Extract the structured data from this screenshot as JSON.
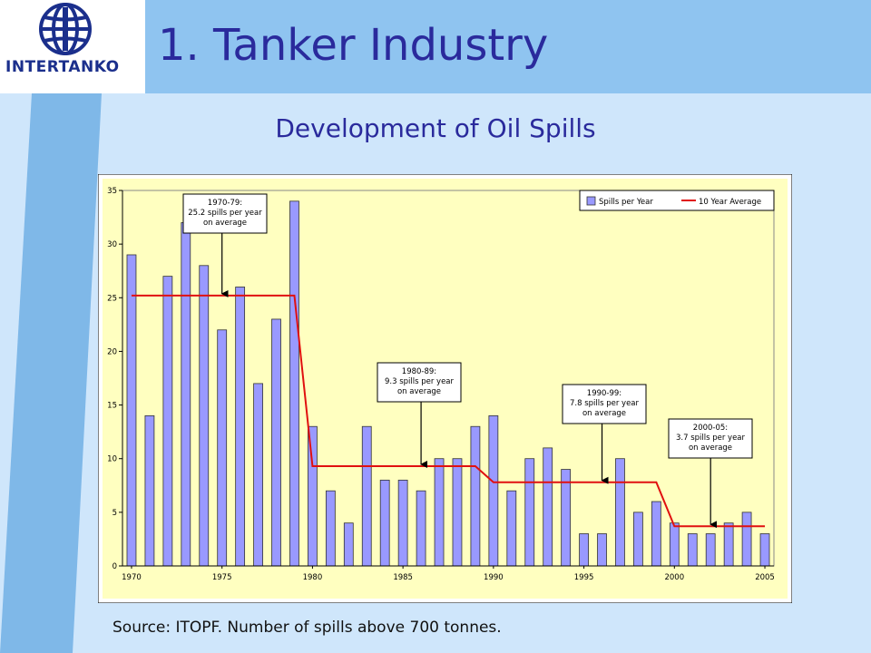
{
  "slide": {
    "title": "1. Tanker Industry",
    "subtitle": "Development of Oil Spills",
    "source": "Source: ITOPF. Number of spills above 700 tonnes.",
    "logo_text": "INTERTANKO"
  },
  "colors": {
    "title": "#2a2a9c",
    "plot_bg": "#ffffc0",
    "bar_fill": "#9999ff",
    "avg_line": "#e01010"
  },
  "chart_data": {
    "type": "bar",
    "title": "",
    "xlabel": "",
    "ylabel": "",
    "ylim": [
      0,
      35
    ],
    "yticks": [
      0,
      5,
      10,
      15,
      20,
      25,
      30,
      35
    ],
    "xtick_labels": [
      "1970",
      "1975",
      "1980",
      "1985",
      "1990",
      "1995",
      "2000",
      "2005"
    ],
    "categories": [
      "1970",
      "1971",
      "1972",
      "1973",
      "1974",
      "1975",
      "1976",
      "1977",
      "1978",
      "1979",
      "1980",
      "1981",
      "1982",
      "1983",
      "1984",
      "1985",
      "1986",
      "1987",
      "1988",
      "1989",
      "1990",
      "1991",
      "1992",
      "1993",
      "1994",
      "1995",
      "1996",
      "1997",
      "1998",
      "1999",
      "2000",
      "2001",
      "2002",
      "2003",
      "2004",
      "2005"
    ],
    "legend": {
      "position": "top-right"
    },
    "series": [
      {
        "name": "Spills per Year",
        "type": "bar",
        "values": [
          29,
          14,
          27,
          32,
          28,
          22,
          26,
          17,
          23,
          34,
          13,
          7,
          4,
          13,
          8,
          8,
          7,
          10,
          10,
          13,
          14,
          7,
          10,
          11,
          9,
          3,
          3,
          10,
          5,
          6,
          4,
          3,
          3,
          4,
          5,
          3
        ]
      },
      {
        "name": "10 Year Average",
        "type": "step",
        "segments": [
          {
            "from": "1970",
            "to": "1979",
            "value": 25.2
          },
          {
            "from": "1980",
            "to": "1989",
            "value": 9.3
          },
          {
            "from": "1990",
            "to": "1999",
            "value": 7.8
          },
          {
            "from": "2000",
            "to": "2005",
            "value": 3.7
          }
        ]
      }
    ],
    "annotations": [
      {
        "lines": [
          "1970-79:",
          "25.2 spills per year",
          "on average"
        ],
        "target_year": "1975",
        "target_value": 25.2
      },
      {
        "lines": [
          "1980-89:",
          "9.3 spills per year",
          "on average"
        ],
        "target_year": "1986",
        "target_value": 9.3
      },
      {
        "lines": [
          "1990-99:",
          "7.8 spills per year",
          "on average"
        ],
        "target_year": "1996",
        "target_value": 7.8
      },
      {
        "lines": [
          "2000-05:",
          "3.7 spills per year",
          "on average"
        ],
        "target_year": "2002",
        "target_value": 3.7
      }
    ]
  }
}
